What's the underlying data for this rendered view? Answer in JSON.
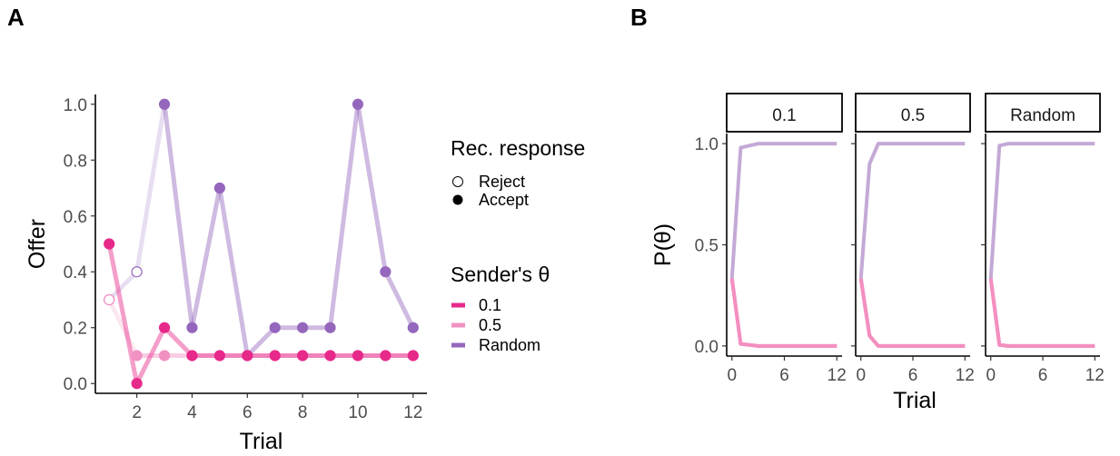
{
  "chart_data": [
    {
      "panel_label": "A",
      "type": "line",
      "xlabel": "Trial",
      "ylabel": "Offer",
      "xlim": [
        0.5,
        12.5
      ],
      "ylim": [
        -0.035,
        1.035
      ],
      "xticks": [
        2,
        4,
        6,
        8,
        10,
        12
      ],
      "xtick_labels": [
        "2",
        "4",
        "6",
        "8",
        "10",
        "12"
      ],
      "yticks": [
        0,
        0.2,
        0.4,
        0.6,
        0.8,
        1.0
      ],
      "ytick_labels": [
        "0.0",
        "0.2",
        "0.4",
        "0.6",
        "0.8",
        "1.0"
      ],
      "grid": false,
      "x": [
        1,
        2,
        3,
        4,
        5,
        6,
        7,
        8,
        9,
        10,
        11,
        12
      ],
      "series": [
        {
          "name": "0.1",
          "color": "#e7298a",
          "values": [
            0.5,
            0,
            0.2,
            0.1,
            0.1,
            0.1,
            0.1,
            0.1,
            0.1,
            0.1,
            0.1,
            0.1
          ],
          "accepted": [
            true,
            true,
            true,
            true,
            true,
            true,
            true,
            true,
            true,
            true,
            true,
            true
          ]
        },
        {
          "name": "0.5",
          "color": "#f191c1",
          "values": [
            0.3,
            0.1,
            0.1,
            0.1,
            0.1,
            0.1,
            0.1,
            0.1,
            0.1,
            0.1,
            0.1,
            0.1
          ],
          "accepted": [
            false,
            true,
            true,
            true,
            true,
            true,
            true,
            true,
            true,
            true,
            true,
            true
          ]
        },
        {
          "name": "Random",
          "color": "#9467bd",
          "values": [
            0.3,
            0.4,
            1.0,
            0.2,
            0.7,
            0.1,
            0.2,
            0.2,
            0.2,
            1.0,
            0.4,
            0.2
          ],
          "accepted": [
            false,
            false,
            true,
            true,
            true,
            true,
            true,
            true,
            true,
            true,
            true,
            true
          ]
        }
      ],
      "legends": [
        {
          "title": "Rec. response",
          "placement": "right",
          "entries": [
            {
              "label": "Reject",
              "marker": "open-circle"
            },
            {
              "label": "Accept",
              "marker": "filled-circle"
            }
          ]
        },
        {
          "title": "Sender's θ",
          "placement": "right",
          "entries": [
            {
              "label": "0.1",
              "color": "#e7298a"
            },
            {
              "label": "0.5",
              "color": "#f191c1"
            },
            {
              "label": "Random",
              "color": "#9467bd"
            }
          ]
        }
      ]
    },
    {
      "panel_label": "B",
      "type": "line",
      "facet": true,
      "xlabel": "Trial",
      "ylabel": "P(θ)",
      "xlim": [
        -0.6,
        12.6
      ],
      "ylim": [
        -0.05,
        1.05
      ],
      "xticks": [
        0,
        6,
        12
      ],
      "xtick_labels": [
        "0",
        "6",
        "12"
      ],
      "yticks": [
        0,
        0.5,
        1.0
      ],
      "ytick_labels": [
        "0.0",
        "0.5",
        "1.0"
      ],
      "grid": false,
      "facets": [
        {
          "label": "0.1",
          "x": [
            0,
            1,
            2,
            3,
            4,
            5,
            6,
            7,
            8,
            9,
            10,
            11,
            12
          ],
          "series": [
            {
              "name": "Random",
              "color": "#c4a9d6",
              "values": [
                0.333,
                0.98,
                0.99,
                1.0,
                1.0,
                1.0,
                1.0,
                1.0,
                1.0,
                1.0,
                1.0,
                1.0,
                1.0
              ]
            },
            {
              "name": "0.1",
              "color": "#f48ec0",
              "values": [
                0.333,
                0.01,
                0.005,
                0.0,
                0.0,
                0.0,
                0.0,
                0.0,
                0.0,
                0.0,
                0.0,
                0.0,
                0.0
              ]
            },
            {
              "name": "0.5",
              "color": "#f48ec0",
              "values": [
                0.333,
                0.01,
                0.005,
                0.0,
                0.0,
                0.0,
                0.0,
                0.0,
                0.0,
                0.0,
                0.0,
                0.0,
                0.0
              ]
            }
          ]
        },
        {
          "label": "0.5",
          "x": [
            0,
            1,
            2,
            3,
            4,
            5,
            6,
            7,
            8,
            9,
            10,
            11,
            12
          ],
          "series": [
            {
              "name": "Random",
              "color": "#c4a9d6",
              "values": [
                0.333,
                0.9,
                1.0,
                1.0,
                1.0,
                1.0,
                1.0,
                1.0,
                1.0,
                1.0,
                1.0,
                1.0,
                1.0
              ]
            },
            {
              "name": "0.1",
              "color": "#f48ec0",
              "values": [
                0.333,
                0.05,
                0.0,
                0.0,
                0.0,
                0.0,
                0.0,
                0.0,
                0.0,
                0.0,
                0.0,
                0.0,
                0.0
              ]
            },
            {
              "name": "0.5",
              "color": "#f48ec0",
              "values": [
                0.333,
                0.05,
                0.0,
                0.0,
                0.0,
                0.0,
                0.0,
                0.0,
                0.0,
                0.0,
                0.0,
                0.0,
                0.0
              ]
            }
          ]
        },
        {
          "label": "Random",
          "x": [
            0,
            1,
            2,
            3,
            4,
            5,
            6,
            7,
            8,
            9,
            10,
            11,
            12
          ],
          "series": [
            {
              "name": "Random",
              "color": "#c4a9d6",
              "values": [
                0.333,
                0.99,
                1.0,
                1.0,
                1.0,
                1.0,
                1.0,
                1.0,
                1.0,
                1.0,
                1.0,
                1.0,
                1.0
              ]
            },
            {
              "name": "0.1",
              "color": "#f48ec0",
              "values": [
                0.333,
                0.005,
                0.0,
                0.0,
                0.0,
                0.0,
                0.0,
                0.0,
                0.0,
                0.0,
                0.0,
                0.0,
                0.0
              ]
            },
            {
              "name": "0.5",
              "color": "#f48ec0",
              "values": [
                0.333,
                0.005,
                0.0,
                0.0,
                0.0,
                0.0,
                0.0,
                0.0,
                0.0,
                0.0,
                0.0,
                0.0,
                0.0
              ]
            }
          ]
        }
      ]
    }
  ]
}
